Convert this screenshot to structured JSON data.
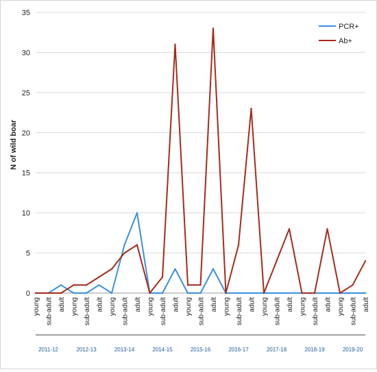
{
  "chart_data": {
    "type": "line",
    "ylabel": "N of wild boar",
    "ylim": [
      0,
      35
    ],
    "yticks": [
      0,
      5,
      10,
      15,
      20,
      25,
      30,
      35
    ],
    "categories": [
      "young",
      "sub-adult",
      "adult",
      "young",
      "sub-adult",
      "adult",
      "young",
      "sub-adult",
      "adult",
      "young",
      "sub-adult",
      "adult",
      "young",
      "sub-adult",
      "adult",
      "young",
      "sub-adult",
      "adult",
      "young",
      "sub-adult",
      "adult",
      "young",
      "sub-adult",
      "adult",
      "young",
      "sub-adult",
      "adult"
    ],
    "groups": [
      "2011-12",
      "2012-13",
      "2013-14",
      "2014-15",
      "2015-16",
      "2016-17",
      "2017-18",
      "2018-19",
      "2019-20"
    ],
    "series": [
      {
        "name": "PCR+",
        "color": "#3a8fde",
        "values": [
          0,
          0,
          1,
          0,
          0,
          1,
          0,
          6,
          10,
          0,
          0,
          3,
          0,
          0,
          3,
          0,
          0,
          0,
          0,
          0,
          0,
          0,
          0,
          0,
          0,
          0,
          0
        ]
      },
      {
        "name": "Ab+",
        "color": "#a52a1a",
        "values": [
          0,
          0,
          0,
          1,
          1,
          2,
          3,
          5,
          6,
          0,
          2,
          31,
          1,
          1,
          33,
          0,
          6,
          23,
          0,
          4,
          8,
          0,
          0,
          8,
          0,
          1,
          4
        ]
      }
    ],
    "legend_position": "top-right",
    "grid": "horizontal",
    "group_label_color": "#1a5a9a"
  }
}
